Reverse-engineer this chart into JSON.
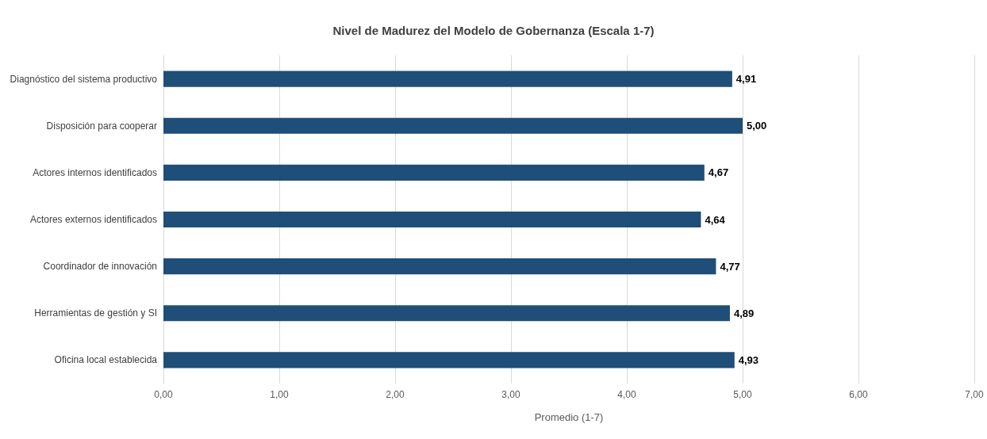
{
  "chart_data": {
    "type": "bar",
    "orientation": "horizontal",
    "title": "Nivel de Madurez del Modelo de Gobernanza (Escala 1-7)",
    "xlabel": "Promedio (1-7)",
    "categories": [
      "Diagnóstico del sistema productivo",
      "Disposición para cooperar",
      "Actores internos identificados",
      "Actores externos identificados",
      "Coordinador de innovación",
      "Herramientas de gestión y SI",
      "Oficina local establecida"
    ],
    "values": [
      4.91,
      5.0,
      4.67,
      4.64,
      4.77,
      4.89,
      4.93
    ],
    "value_labels": [
      "4,91",
      "5,00",
      "4,67",
      "4,64",
      "4,77",
      "4,89",
      "4,93"
    ],
    "color": "#1f4e79",
    "xlim": [
      0,
      7
    ],
    "xticks": [
      {
        "value": 0,
        "label": "0,00"
      },
      {
        "value": 1,
        "label": "1,00"
      },
      {
        "value": 2,
        "label": "2,00"
      },
      {
        "value": 3,
        "label": "3,00"
      },
      {
        "value": 4,
        "label": "4,00"
      },
      {
        "value": 5,
        "label": "5,00"
      },
      {
        "value": 6,
        "label": "6,00"
      },
      {
        "value": 7,
        "label": "7,00"
      }
    ],
    "grid": "x"
  }
}
